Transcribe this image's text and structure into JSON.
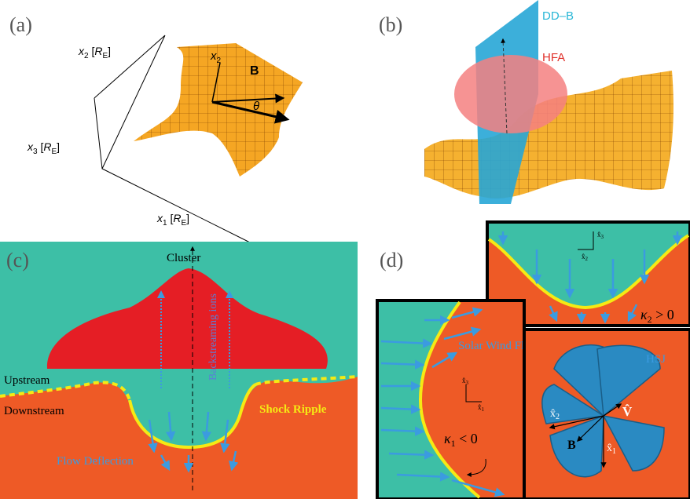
{
  "panel_a": {
    "label": "(a)",
    "axis_x2": {
      "var": "x",
      "index": "2",
      "unit": "R",
      "unit_index": "E"
    },
    "axis_x3": {
      "var": "x",
      "index": "3",
      "unit": "R",
      "unit_index": "E"
    },
    "axis_x1": {
      "var": "x",
      "index": "1",
      "unit": "R",
      "unit_index": "E"
    },
    "vector_x2": {
      "var": "x",
      "index": "2"
    },
    "field": "B",
    "angle": "θ"
  },
  "panel_b": {
    "label": "(b)",
    "plane": "DD–B",
    "blob": "HFA"
  },
  "panel_c": {
    "label": "(c)",
    "spacecraft": "Cluster",
    "ions": "Backstreaming ions",
    "upstream": "Upstream",
    "downstream": "Downstream",
    "shock": "Shock Ripple",
    "deflection": "Flow Deflection"
  },
  "panel_d": {
    "label": "(d)",
    "top_axes": {
      "a": {
        "var": "x̂",
        "index": "3"
      },
      "b": {
        "var": "x̂",
        "index": "2"
      }
    },
    "kappa2": {
      "var": "κ",
      "index": "2",
      "rel": " > 0"
    },
    "flow": "Solar Wind Flow",
    "left_axes": {
      "a": {
        "var": "x̂",
        "index": "3"
      },
      "b": {
        "var": "x̂",
        "index": "1"
      }
    },
    "kappa1": {
      "var": "κ",
      "index": "1",
      "rel": " < 0"
    },
    "hsj": "HSJ",
    "hsj_axes": {
      "x2": {
        "var": "x̂",
        "index": "2"
      },
      "v": "V̂",
      "b": "B",
      "x1": {
        "var": "x̂",
        "index": "1"
      }
    }
  }
}
